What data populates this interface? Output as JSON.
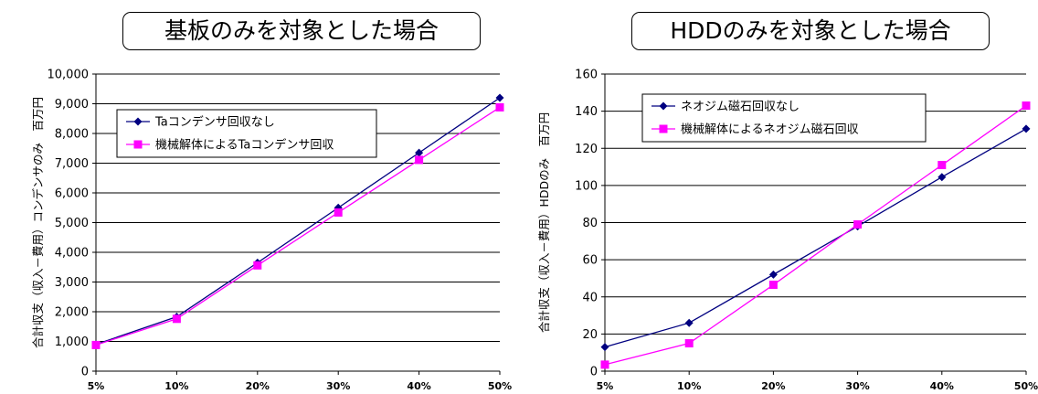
{
  "chart_data": [
    {
      "type": "line",
      "title": "基板のみを対象とした場合",
      "ylabel": "合計収支（収入－費用）コンデンサのみ　百万円",
      "xlabel": "",
      "categories": [
        "5%",
        "10%",
        "20%",
        "30%",
        "40%",
        "50%"
      ],
      "ylim": [
        0,
        10000
      ],
      "y_ticks": [
        "0",
        "1,000",
        "2,000",
        "3,000",
        "4,000",
        "5,000",
        "6,000",
        "7,000",
        "8,000",
        "9,000",
        "10,000"
      ],
      "grid": true,
      "legend_position": "top-left",
      "series": [
        {
          "name": "Taコンデンサ回収なし",
          "color": "#000080",
          "marker": "diamond",
          "values": [
            900,
            1830,
            3650,
            5500,
            7350,
            9200
          ]
        },
        {
          "name": "機械解体によるTaコンデンサ回収",
          "color": "#ff00ff",
          "marker": "square",
          "values": [
            880,
            1760,
            3560,
            5340,
            7110,
            8880
          ]
        }
      ]
    },
    {
      "type": "line",
      "title": "HDDのみを対象とした場合",
      "ylabel": "合計収支（収入－費用）HDDのみ　百万円",
      "xlabel": "",
      "categories": [
        "5%",
        "10%",
        "20%",
        "30%",
        "40%",
        "50%"
      ],
      "ylim": [
        0,
        160
      ],
      "y_ticks": [
        "0",
        "20",
        "40",
        "60",
        "80",
        "100",
        "120",
        "140",
        "160"
      ],
      "grid": true,
      "legend_position": "top-left",
      "series": [
        {
          "name": "ネオジム磁石回収なし",
          "color": "#000080",
          "marker": "diamond",
          "values": [
            13,
            26,
            52,
            78,
            104.5,
            130.5
          ]
        },
        {
          "name": "機械解体によるネオジム磁石回収",
          "color": "#ff00ff",
          "marker": "square",
          "values": [
            3.5,
            15,
            46.5,
            79,
            111,
            143
          ]
        }
      ]
    }
  ]
}
